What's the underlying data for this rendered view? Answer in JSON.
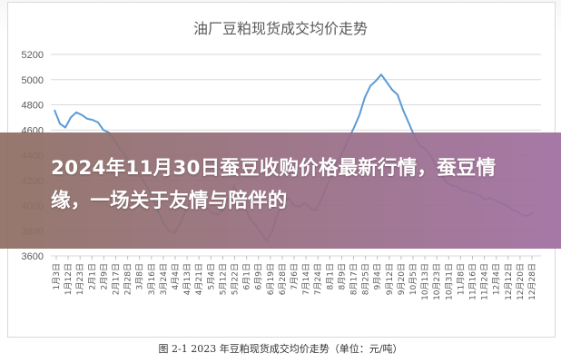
{
  "chart_data": {
    "type": "line",
    "title": "油厂豆粕现货成交均价走势",
    "caption": "图 2-1  2023 年豆粕现货成交均价走势（单位：元/吨）",
    "ylim": [
      3600,
      5200
    ],
    "yticks": [
      "5200",
      "5000",
      "4800",
      "4600",
      "4400",
      "4200",
      "4000",
      "3800",
      "3600"
    ],
    "ytick_values": [
      5200,
      5000,
      4800,
      4600,
      4400,
      4200,
      4000,
      3800,
      3600
    ],
    "xlabels": [
      "1月3日",
      "1月12日",
      "1月23日",
      "2月1日",
      "2月9日",
      "2月17日",
      "2月28日",
      "3月8日",
      "3月16日",
      "3月24日",
      "4月4日",
      "4月13日",
      "4月21日",
      "5月4日",
      "5月12日",
      "5月22日",
      "6月1日",
      "6月9日",
      "6月19日",
      "6月28日",
      "7月6日",
      "7月14日",
      "7月24日",
      "8月1日",
      "8月9日",
      "8月17日",
      "8月25日",
      "9月4日",
      "9月12日",
      "9月20日",
      "10月5日",
      "10月13日",
      "10月23日",
      "10月31日",
      "11月8日",
      "11月16日",
      "11月24日",
      "12月4日",
      "12月12日",
      "12月20日",
      "12月28日"
    ],
    "series": [
      {
        "color": "#5b9bd5",
        "values": [
          4760,
          4650,
          4620,
          4700,
          4740,
          4720,
          4690,
          4680,
          4660,
          4600,
          4580,
          4520,
          4450,
          4400,
          4320,
          4280,
          4220,
          4150,
          4060,
          3960,
          3860,
          3800,
          3780,
          3850,
          3950,
          4020,
          4000,
          4050,
          3980,
          3940,
          3930,
          3960,
          4060,
          4160,
          4040,
          3980,
          3890,
          3840,
          3780,
          3720,
          3800,
          3940,
          4020,
          4060,
          4000,
          3990,
          4020,
          3980,
          3960,
          4050,
          4150,
          4250,
          4350,
          4430,
          4530,
          4620,
          4720,
          4860,
          4950,
          4990,
          5040,
          4980,
          4920,
          4880,
          4760,
          4660,
          4560,
          4480,
          4450,
          4400,
          4320,
          4250,
          4180,
          4160,
          4150,
          4120,
          4110,
          4100,
          4080,
          4050,
          4060,
          4040,
          4020,
          4000,
          3970,
          3950,
          3920,
          3920,
          3950
        ]
      }
    ],
    "headline": "2024年11月30日蚕豆收购价格最新行情，蚕豆情缘，一场关于友情与陪伴的"
  }
}
